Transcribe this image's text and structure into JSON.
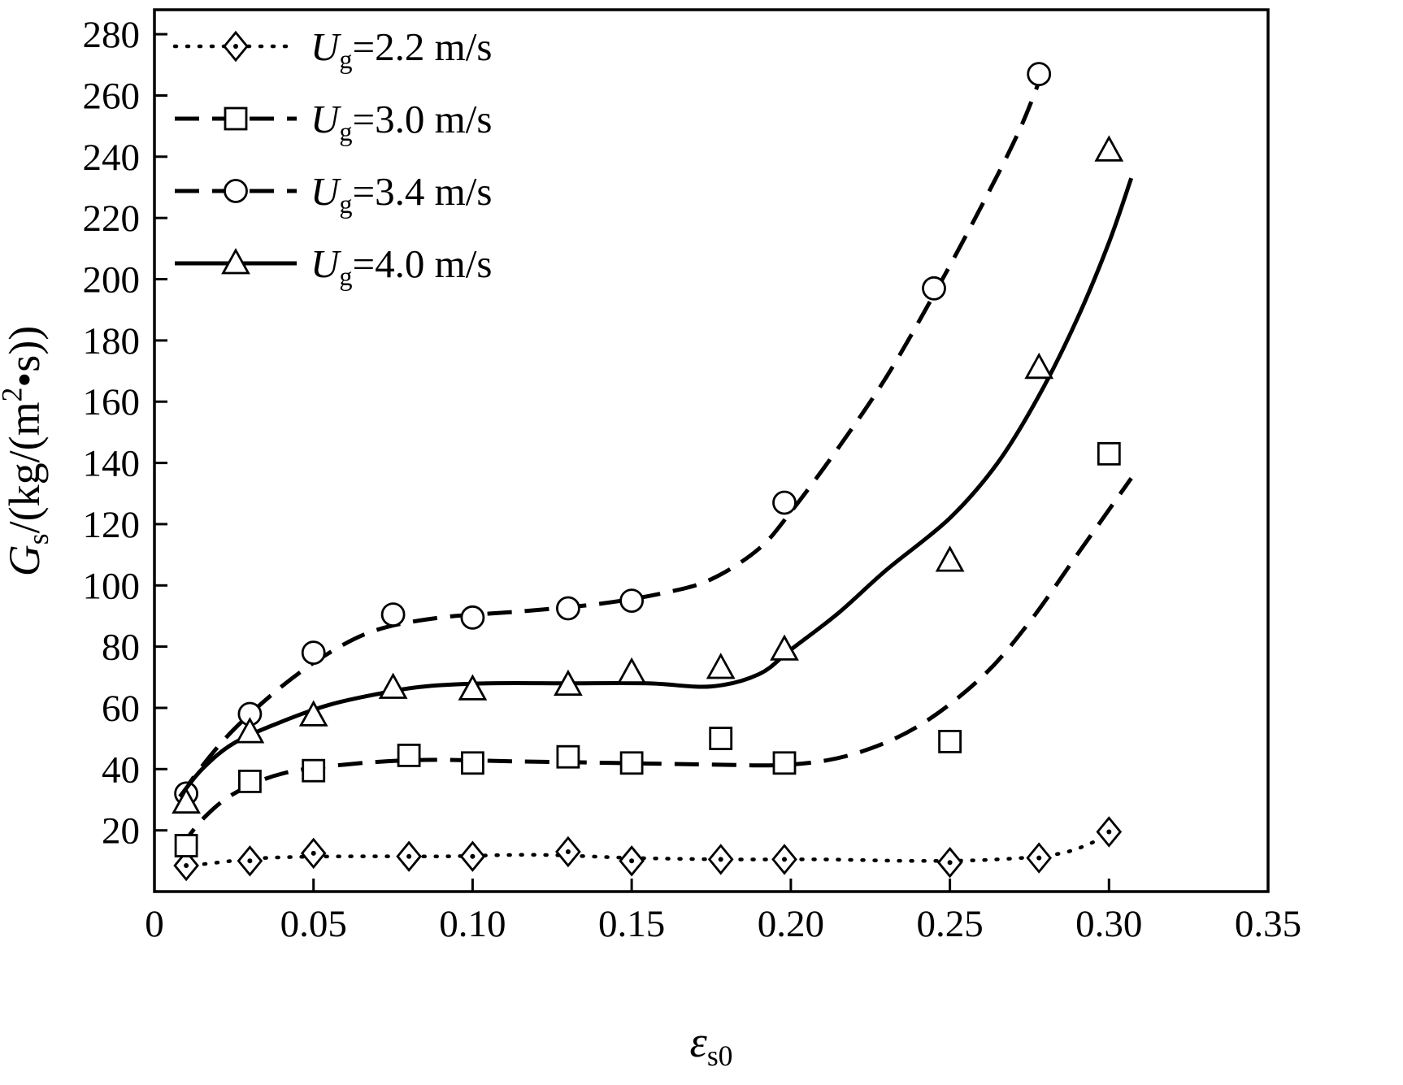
{
  "figure": {
    "background": "#ffffff",
    "frame_color": "#000000",
    "text_color": "#000000"
  },
  "chart_data": {
    "type": "line",
    "title": "",
    "xlabel": "εs0",
    "ylabel": "Gs/(kg/(m2•s))",
    "xlabel_segments": [
      {
        "t": "ε",
        "s": "italic"
      },
      {
        "t": "s0",
        "s": "sub"
      }
    ],
    "ylabel_segments": [
      {
        "t": "G",
        "s": "italic"
      },
      {
        "t": "s",
        "s": "sub"
      },
      {
        "t": "/(kg/(m",
        "s": "normal"
      },
      {
        "t": "2",
        "s": "sup"
      },
      {
        "t": "•s))",
        "s": "normal"
      }
    ],
    "xlim": [
      0,
      0.35
    ],
    "ylim": [
      0,
      288
    ],
    "grid": false,
    "legend_position": "top-left",
    "x_ticks": {
      "values": [
        0,
        0.05,
        0.1,
        0.15,
        0.2,
        0.25,
        0.3,
        0.35
      ],
      "labels": [
        "0",
        "0.05",
        "0.10",
        "0.15",
        "0.20",
        "0.25",
        "0.30",
        "0.35"
      ]
    },
    "y_ticks": {
      "values": [
        0,
        20,
        40,
        60,
        80,
        100,
        120,
        140,
        160,
        180,
        200,
        220,
        240,
        260,
        280
      ],
      "labels": [
        "",
        "20",
        "40",
        "60",
        "80",
        "100",
        "120",
        "140",
        "160",
        "180",
        "200",
        "220",
        "240",
        "260",
        "280"
      ]
    },
    "series": [
      {
        "id": "ug-2-2",
        "label": "Ug=2.2 m/s",
        "label_segments": [
          {
            "t": "U",
            "s": "italic"
          },
          {
            "t": "g",
            "s": "sub"
          },
          {
            "t": "=2.2 m/s",
            "s": "normal"
          }
        ],
        "color": "#000000",
        "line_style": "dotted",
        "marker": "diamond-dot",
        "curve": [
          [
            0.008,
            8
          ],
          [
            0.02,
            9.5
          ],
          [
            0.035,
            11
          ],
          [
            0.06,
            11.5
          ],
          [
            0.09,
            11.5
          ],
          [
            0.12,
            12
          ],
          [
            0.15,
            11
          ],
          [
            0.18,
            10.5
          ],
          [
            0.21,
            10.5
          ],
          [
            0.24,
            10
          ],
          [
            0.265,
            10.5
          ],
          [
            0.285,
            12.5
          ],
          [
            0.297,
            17
          ]
        ],
        "points": [
          [
            0.01,
            8.5
          ],
          [
            0.03,
            10
          ],
          [
            0.05,
            12.5
          ],
          [
            0.08,
            11.5
          ],
          [
            0.1,
            11.5
          ],
          [
            0.13,
            13
          ],
          [
            0.15,
            10
          ],
          [
            0.178,
            10.5
          ],
          [
            0.198,
            10.5
          ],
          [
            0.25,
            9.5
          ],
          [
            0.278,
            11
          ],
          [
            0.3,
            19.5
          ]
        ]
      },
      {
        "id": "ug-3-0",
        "label": "Ug=3.0 m/s",
        "label_segments": [
          {
            "t": "U",
            "s": "italic"
          },
          {
            "t": "g",
            "s": "sub"
          },
          {
            "t": "=3.0 m/s",
            "s": "normal"
          }
        ],
        "color": "#000000",
        "line_style": "dashed",
        "marker": "square",
        "curve": [
          [
            0.008,
            14
          ],
          [
            0.015,
            23.5
          ],
          [
            0.025,
            32
          ],
          [
            0.04,
            38.5
          ],
          [
            0.06,
            41.5
          ],
          [
            0.085,
            43
          ],
          [
            0.115,
            42.5
          ],
          [
            0.145,
            42
          ],
          [
            0.175,
            41.5
          ],
          [
            0.2,
            41.5
          ],
          [
            0.22,
            45
          ],
          [
            0.24,
            54
          ],
          [
            0.26,
            70
          ],
          [
            0.275,
            88
          ],
          [
            0.29,
            110
          ],
          [
            0.307,
            135
          ]
        ],
        "points": [
          [
            0.01,
            15
          ],
          [
            0.03,
            36
          ],
          [
            0.05,
            39.5
          ],
          [
            0.08,
            44.5
          ],
          [
            0.1,
            42
          ],
          [
            0.13,
            44
          ],
          [
            0.15,
            42
          ],
          [
            0.178,
            50
          ],
          [
            0.198,
            42
          ],
          [
            0.25,
            49
          ],
          [
            0.3,
            143
          ]
        ]
      },
      {
        "id": "ug-3-4",
        "label": "Ug=3.4 m/s",
        "label_segments": [
          {
            "t": "U",
            "s": "italic"
          },
          {
            "t": "g",
            "s": "sub"
          },
          {
            "t": "=3.4 m/s",
            "s": "normal"
          }
        ],
        "color": "#000000",
        "line_style": "dashed",
        "marker": "circle",
        "curve": [
          [
            0.008,
            31
          ],
          [
            0.015,
            41
          ],
          [
            0.025,
            53
          ],
          [
            0.04,
            67
          ],
          [
            0.055,
            78
          ],
          [
            0.07,
            85.5
          ],
          [
            0.09,
            89.5
          ],
          [
            0.115,
            91.5
          ],
          [
            0.14,
            94
          ],
          [
            0.16,
            97.5
          ],
          [
            0.175,
            102
          ],
          [
            0.19,
            112
          ],
          [
            0.2,
            124
          ],
          [
            0.215,
            145
          ],
          [
            0.23,
            168
          ],
          [
            0.245,
            195
          ],
          [
            0.26,
            224
          ],
          [
            0.272,
            249
          ],
          [
            0.28,
            270
          ]
        ],
        "points": [
          [
            0.01,
            32
          ],
          [
            0.03,
            58
          ],
          [
            0.05,
            78
          ],
          [
            0.075,
            90.5
          ],
          [
            0.1,
            89.5
          ],
          [
            0.13,
            92.5
          ],
          [
            0.15,
            95
          ],
          [
            0.198,
            127
          ],
          [
            0.245,
            197
          ],
          [
            0.278,
            267
          ]
        ]
      },
      {
        "id": "ug-4-0",
        "label": "Ug=4.0 m/s",
        "label_segments": [
          {
            "t": "U",
            "s": "italic"
          },
          {
            "t": "g",
            "s": "sub"
          },
          {
            "t": "=4.0 m/s",
            "s": "normal"
          }
        ],
        "color": "#000000",
        "line_style": "solid",
        "marker": "triangle",
        "curve": [
          [
            0.008,
            31
          ],
          [
            0.015,
            40
          ],
          [
            0.025,
            48.5
          ],
          [
            0.04,
            55.5
          ],
          [
            0.055,
            61
          ],
          [
            0.07,
            64.5
          ],
          [
            0.085,
            67
          ],
          [
            0.105,
            68
          ],
          [
            0.13,
            68
          ],
          [
            0.155,
            68
          ],
          [
            0.175,
            67
          ],
          [
            0.19,
            71
          ],
          [
            0.2,
            79
          ],
          [
            0.215,
            91
          ],
          [
            0.23,
            105
          ],
          [
            0.25,
            122
          ],
          [
            0.265,
            140
          ],
          [
            0.278,
            162
          ],
          [
            0.29,
            187
          ],
          [
            0.3,
            212
          ],
          [
            0.307,
            233
          ]
        ],
        "points": [
          [
            0.01,
            29
          ],
          [
            0.03,
            52
          ],
          [
            0.05,
            57.5
          ],
          [
            0.075,
            66.5
          ],
          [
            0.1,
            66
          ],
          [
            0.13,
            67.5
          ],
          [
            0.15,
            71.5
          ],
          [
            0.178,
            73
          ],
          [
            0.198,
            79
          ],
          [
            0.25,
            108
          ],
          [
            0.278,
            171
          ],
          [
            0.3,
            242
          ]
        ]
      }
    ]
  }
}
